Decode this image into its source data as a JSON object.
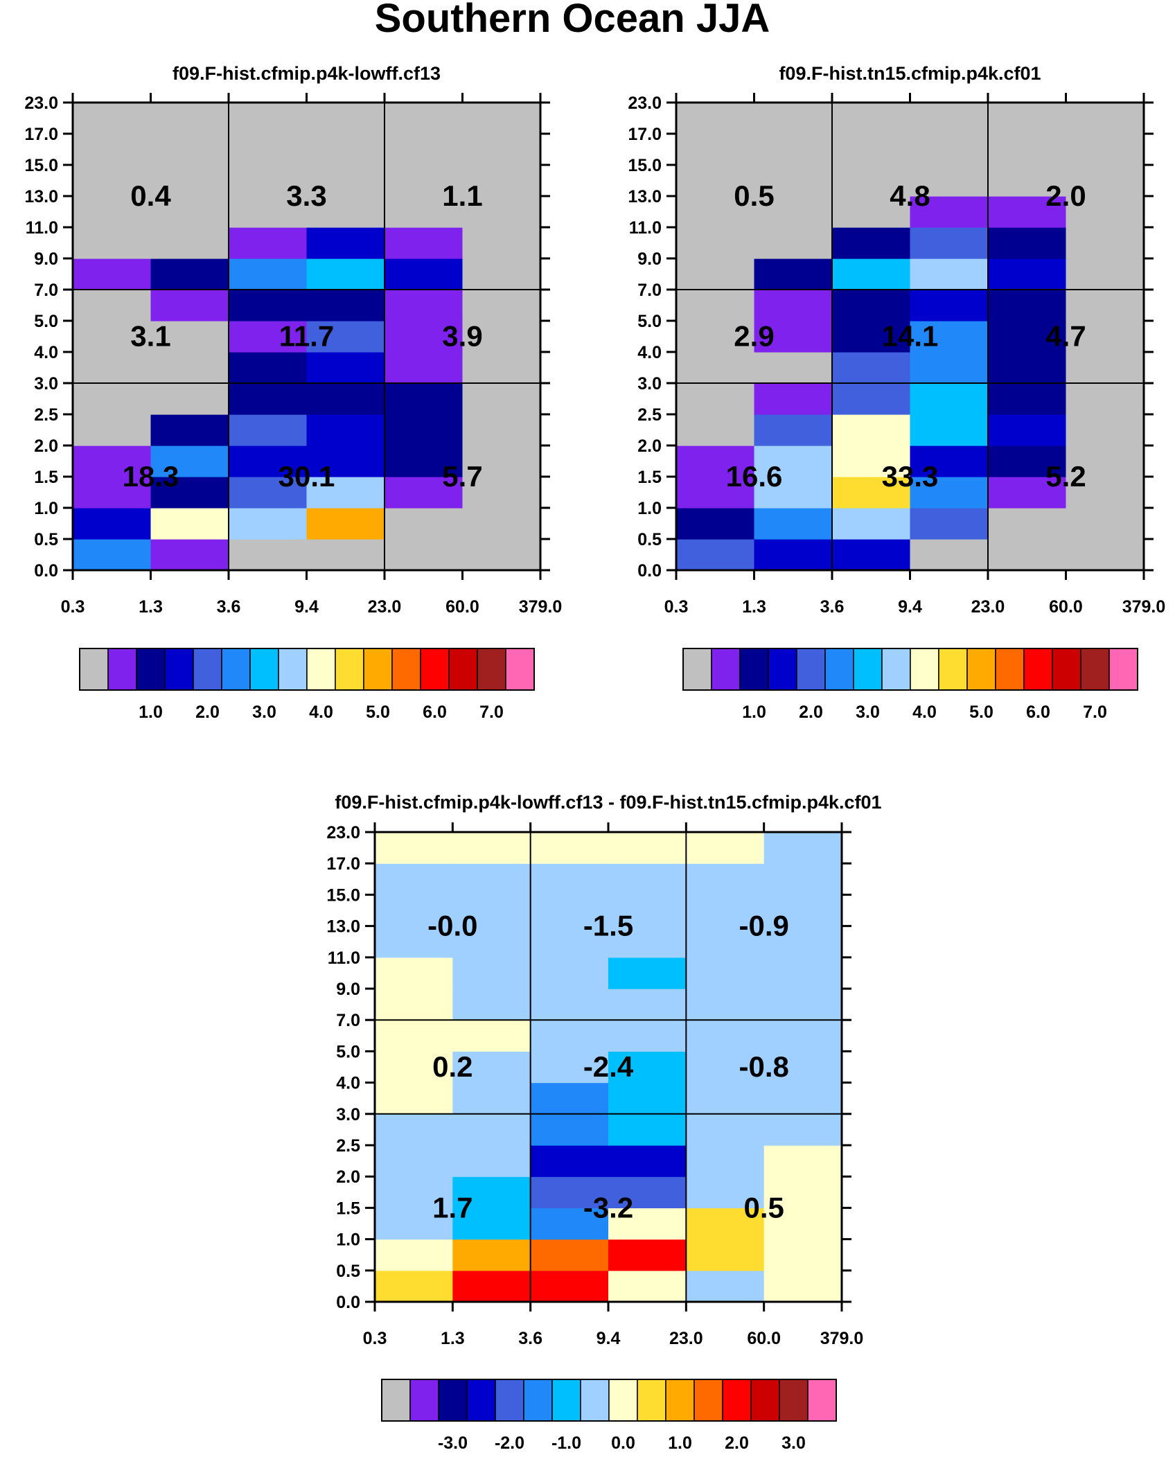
{
  "title": "Southern Ocean JJA",
  "colors": {
    "missing": "#c0c0c0",
    "palette": [
      "#c0c0c0",
      "#8022ee",
      "#000090",
      "#0000cc",
      "#4060dd",
      "#2088f8",
      "#00bfff",
      "#a0d0ff",
      "#ffffcc",
      "#ffdd30",
      "#ffaa00",
      "#ff6a00",
      "#ff0000",
      "#cc0000",
      "#a02020",
      "#ff66b3"
    ]
  },
  "chart_data": [
    {
      "type": "heatmap",
      "title": "f09.F-hist.cfmip.p4k-lowff.cf13",
      "xlabel": "",
      "ylabel": "",
      "x_tick_labels": [
        "0.3",
        "1.3",
        "3.6",
        "9.4",
        "23.0",
        "60.0",
        "379.0"
      ],
      "y_tick_labels": [
        "0.0",
        "0.5",
        "1.0",
        "1.5",
        "2.0",
        "2.5",
        "3.0",
        "4.0",
        "5.0",
        "7.0",
        "9.0",
        "11.0",
        "13.0",
        "15.0",
        "17.0",
        "23.0"
      ],
      "color_bins_bottom_to_top": [
        [
          5,
          1,
          0,
          0,
          0,
          0
        ],
        [
          3,
          8,
          7,
          10,
          0,
          0
        ],
        [
          1,
          2,
          4,
          7,
          1,
          0
        ],
        [
          1,
          5,
          3,
          3,
          2,
          0
        ],
        [
          0,
          2,
          4,
          3,
          2,
          0
        ],
        [
          0,
          0,
          2,
          2,
          2,
          0
        ],
        [
          0,
          0,
          2,
          3,
          1,
          0
        ],
        [
          0,
          0,
          1,
          4,
          1,
          0
        ],
        [
          0,
          1,
          2,
          2,
          1,
          0
        ],
        [
          1,
          2,
          5,
          6,
          3,
          0
        ],
        [
          0,
          0,
          1,
          3,
          1,
          0
        ],
        [
          0,
          0,
          0,
          0,
          0,
          0
        ],
        [
          0,
          0,
          0,
          0,
          0,
          0
        ],
        [
          0,
          0,
          0,
          0,
          0,
          0
        ],
        [
          0,
          0,
          0,
          0,
          0,
          0
        ]
      ],
      "summary_labels": [
        "0.4",
        "3.3",
        "1.1",
        "3.1",
        "11.7",
        "3.9",
        "18.3",
        "30.1",
        "5.7"
      ],
      "colorbar": {
        "ticks": [
          "1.0",
          "2.0",
          "3.0",
          "4.0",
          "5.0",
          "6.0",
          "7.0"
        ]
      }
    },
    {
      "type": "heatmap",
      "title": "f09.F-hist.tn15.cfmip.p4k.cf01",
      "xlabel": "",
      "ylabel": "",
      "x_tick_labels": [
        "0.3",
        "1.3",
        "3.6",
        "9.4",
        "23.0",
        "60.0",
        "379.0"
      ],
      "y_tick_labels": [
        "0.0",
        "0.5",
        "1.0",
        "1.5",
        "2.0",
        "2.5",
        "3.0",
        "4.0",
        "5.0",
        "7.0",
        "9.0",
        "11.0",
        "13.0",
        "15.0",
        "17.0",
        "23.0"
      ],
      "color_bins_bottom_to_top": [
        [
          4,
          3,
          3,
          0,
          0,
          0
        ],
        [
          2,
          5,
          7,
          4,
          0,
          0
        ],
        [
          1,
          7,
          9,
          5,
          1,
          0
        ],
        [
          1,
          7,
          8,
          3,
          2,
          0
        ],
        [
          0,
          4,
          8,
          6,
          3,
          0
        ],
        [
          0,
          1,
          4,
          6,
          2,
          0
        ],
        [
          0,
          0,
          4,
          5,
          2,
          0
        ],
        [
          0,
          1,
          2,
          5,
          2,
          0
        ],
        [
          0,
          1,
          2,
          3,
          2,
          0
        ],
        [
          0,
          2,
          6,
          7,
          3,
          0
        ],
        [
          0,
          0,
          2,
          4,
          2,
          0
        ],
        [
          0,
          0,
          0,
          1,
          1,
          0
        ],
        [
          0,
          0,
          0,
          0,
          0,
          0
        ],
        [
          0,
          0,
          0,
          0,
          0,
          0
        ],
        [
          0,
          0,
          0,
          0,
          0,
          0
        ]
      ],
      "summary_labels": [
        "0.5",
        "4.8",
        "2.0",
        "2.9",
        "14.1",
        "4.7",
        "16.6",
        "33.3",
        "5.2"
      ],
      "colorbar": {
        "ticks": [
          "1.0",
          "2.0",
          "3.0",
          "4.0",
          "5.0",
          "6.0",
          "7.0"
        ]
      }
    },
    {
      "type": "heatmap",
      "title": "f09.F-hist.cfmip.p4k-lowff.cf13 - f09.F-hist.tn15.cfmip.p4k.cf01",
      "xlabel": "",
      "ylabel": "",
      "x_tick_labels": [
        "0.3",
        "1.3",
        "3.6",
        "9.4",
        "23.0",
        "60.0",
        "379.0"
      ],
      "y_tick_labels": [
        "0.0",
        "0.5",
        "1.0",
        "1.5",
        "2.0",
        "2.5",
        "3.0",
        "4.0",
        "5.0",
        "7.0",
        "9.0",
        "11.0",
        "13.0",
        "15.0",
        "17.0",
        "23.0"
      ],
      "color_bins_bottom_to_top": [
        [
          9,
          12,
          12,
          8,
          7,
          8
        ],
        [
          8,
          10,
          11,
          12,
          9,
          8
        ],
        [
          7,
          6,
          5,
          8,
          9,
          8
        ],
        [
          7,
          6,
          4,
          4,
          7,
          8
        ],
        [
          7,
          7,
          3,
          3,
          7,
          8
        ],
        [
          7,
          7,
          5,
          6,
          7,
          7
        ],
        [
          8,
          7,
          5,
          6,
          7,
          7
        ],
        [
          8,
          7,
          7,
          6,
          7,
          7
        ],
        [
          8,
          8,
          7,
          7,
          7,
          7
        ],
        [
          8,
          7,
          7,
          7,
          7,
          7
        ],
        [
          8,
          7,
          7,
          6,
          7,
          7
        ],
        [
          7,
          7,
          7,
          7,
          7,
          7
        ],
        [
          7,
          7,
          7,
          7,
          7,
          7
        ],
        [
          7,
          7,
          7,
          7,
          7,
          7
        ],
        [
          8,
          8,
          8,
          8,
          8,
          7
        ]
      ],
      "summary_labels": [
        "-0.0",
        "-1.5",
        "-0.9",
        "0.2",
        "-2.4",
        "-0.8",
        "1.7",
        "-3.2",
        "0.5"
      ],
      "colorbar": {
        "ticks": [
          "-3.0",
          "-2.0",
          "-1.0",
          "0.0",
          "1.0",
          "2.0",
          "3.0"
        ]
      }
    }
  ]
}
